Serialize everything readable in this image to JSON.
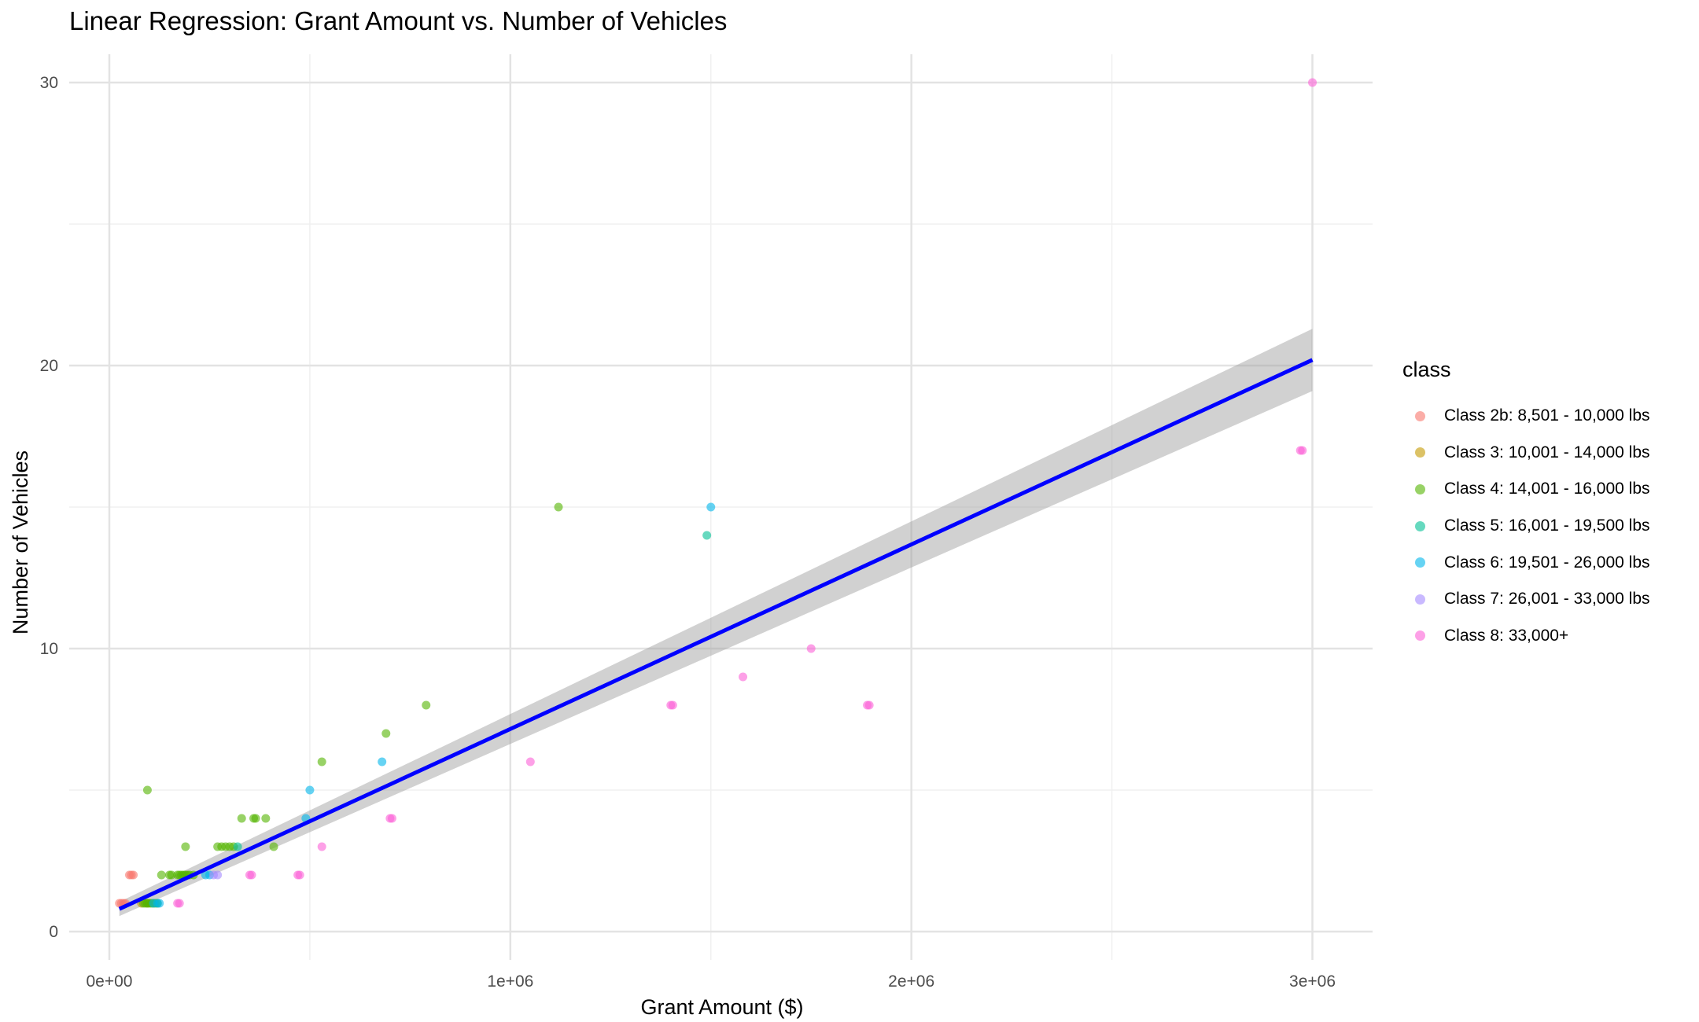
{
  "chart_data": {
    "type": "scatter",
    "title": "Linear Regression: Grant Amount vs. Number of Vehicles",
    "xlabel": "Grant Amount ($)",
    "ylabel": "Number of Vehicles",
    "xlim": [
      -100000,
      3150000
    ],
    "ylim": [
      -1,
      31
    ],
    "x_ticks": [
      0,
      1000000,
      2000000,
      3000000
    ],
    "x_tick_labels": [
      "0e+00",
      "1e+06",
      "2e+06",
      "3e+06"
    ],
    "y_ticks": [
      0,
      10,
      20,
      30
    ],
    "y_tick_labels": [
      "0",
      "10",
      "20",
      "30"
    ],
    "grid": true,
    "legend_title": "class",
    "legend_position": "right",
    "series": [
      {
        "name": "Class 2b: 8,501 - 10,000 lbs",
        "color": "#F8766D",
        "points": [
          [
            25000,
            1
          ],
          [
            30000,
            1
          ],
          [
            35000,
            1
          ],
          [
            40000,
            1
          ],
          [
            50000,
            2
          ],
          [
            55000,
            2
          ],
          [
            60000,
            2
          ]
        ]
      },
      {
        "name": "Class 3: 10,001 - 14,000 lbs",
        "color": "#C49A00",
        "points": [
          [
            80000,
            1
          ],
          [
            95000,
            1
          ]
        ]
      },
      {
        "name": "Class 4: 14,001 - 16,000 lbs",
        "color": "#53B400",
        "points": [
          [
            85000,
            1
          ],
          [
            90000,
            1
          ],
          [
            95000,
            1
          ],
          [
            100000,
            1
          ],
          [
            105000,
            1
          ],
          [
            110000,
            1
          ],
          [
            115000,
            1
          ],
          [
            120000,
            1
          ],
          [
            95000,
            5
          ],
          [
            130000,
            2
          ],
          [
            150000,
            2
          ],
          [
            155000,
            2
          ],
          [
            170000,
            2
          ],
          [
            175000,
            2
          ],
          [
            180000,
            2
          ],
          [
            185000,
            2
          ],
          [
            190000,
            2
          ],
          [
            195000,
            2
          ],
          [
            200000,
            2
          ],
          [
            210000,
            2
          ],
          [
            190000,
            3
          ],
          [
            270000,
            3
          ],
          [
            280000,
            3
          ],
          [
            290000,
            3
          ],
          [
            300000,
            3
          ],
          [
            310000,
            3
          ],
          [
            330000,
            4
          ],
          [
            360000,
            4
          ],
          [
            365000,
            4
          ],
          [
            390000,
            4
          ],
          [
            410000,
            3
          ],
          [
            530000,
            6
          ],
          [
            690000,
            7
          ],
          [
            790000,
            8
          ],
          [
            1120000,
            15
          ]
        ]
      },
      {
        "name": "Class 5: 16,001 - 19,500 lbs",
        "color": "#00C094",
        "points": [
          [
            320000,
            3
          ],
          [
            1490000,
            14
          ]
        ]
      },
      {
        "name": "Class 6: 19,501 - 26,000 lbs",
        "color": "#00B6EB",
        "points": [
          [
            110000,
            1
          ],
          [
            120000,
            1
          ],
          [
            125000,
            1
          ],
          [
            240000,
            2
          ],
          [
            250000,
            2
          ],
          [
            490000,
            4
          ],
          [
            500000,
            5
          ],
          [
            680000,
            6
          ],
          [
            1500000,
            15
          ]
        ]
      },
      {
        "name": "Class 7: 26,001 - 33,000 lbs",
        "color": "#A58AFF",
        "points": [
          [
            260000,
            2
          ],
          [
            270000,
            2
          ]
        ]
      },
      {
        "name": "Class 8: 33,000+",
        "color": "#FB61D7",
        "points": [
          [
            170000,
            1
          ],
          [
            175000,
            1
          ],
          [
            350000,
            2
          ],
          [
            355000,
            2
          ],
          [
            470000,
            2
          ],
          [
            475000,
            2
          ],
          [
            530000,
            3
          ],
          [
            700000,
            4
          ],
          [
            705000,
            4
          ],
          [
            1050000,
            6
          ],
          [
            1400000,
            8
          ],
          [
            1405000,
            8
          ],
          [
            1580000,
            9
          ],
          [
            1750000,
            10
          ],
          [
            1890000,
            8
          ],
          [
            1895000,
            8
          ],
          [
            2970000,
            17
          ],
          [
            2975000,
            17
          ],
          [
            3000000,
            30
          ]
        ]
      }
    ],
    "regression": {
      "color": "#0000FF",
      "x_range": [
        25000,
        3000000
      ],
      "y_range": [
        0.8,
        20.2
      ],
      "ci_lower": [
        0.55,
        19.1
      ],
      "ci_upper": [
        1.05,
        21.3
      ]
    }
  }
}
